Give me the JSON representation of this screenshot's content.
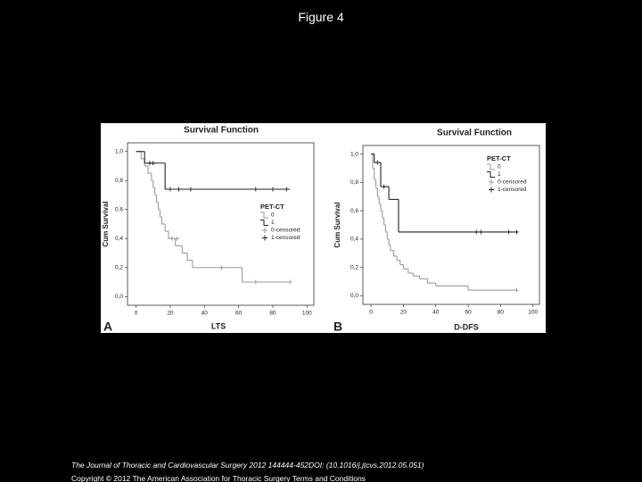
{
  "header": {
    "title": "Figure 4"
  },
  "chart_data": [
    {
      "type": "step",
      "panel": "A",
      "title": "Survival Function",
      "x_label": "LTS",
      "y_label": "Cum Survival",
      "legend_title": "PET-CT",
      "xlim": [
        -5,
        104
      ],
      "ylim": [
        -0.06,
        1.06
      ],
      "xticks": [
        0,
        20,
        40,
        60,
        80,
        100
      ],
      "yticks": [
        {
          "value": 0,
          "label": "0,0"
        },
        {
          "value": 0.2,
          "label": "0,2"
        },
        {
          "value": 0.4,
          "label": "0,4"
        },
        {
          "value": 0.6,
          "label": "0,6"
        },
        {
          "value": 0.8,
          "label": "0,8"
        },
        {
          "value": 1,
          "label": "1,0"
        }
      ],
      "series": [
        {
          "name": "0",
          "color": "#9a9a9a",
          "x": [
            0,
            3,
            5,
            7,
            9,
            10,
            11,
            12,
            13,
            14,
            15,
            17,
            19,
            23,
            27,
            30,
            33,
            62,
            90
          ],
          "values": [
            1,
            0.95,
            0.9,
            0.85,
            0.8,
            0.75,
            0.7,
            0.65,
            0.6,
            0.55,
            0.5,
            0.45,
            0.4,
            0.35,
            0.3,
            0.25,
            0.2,
            0.1,
            0.1
          ]
        },
        {
          "name": "1",
          "color": "#222222",
          "x": [
            0,
            5,
            17,
            90
          ],
          "values": [
            1,
            0.92,
            0.74,
            0.74
          ]
        },
        {
          "name": "0-censored",
          "color": "#9a9a9a",
          "marker": "+",
          "x": [
            21,
            24,
            50,
            70,
            90
          ],
          "values": [
            0.4,
            0.4,
            0.2,
            0.1,
            0.1
          ]
        },
        {
          "name": "1-censored",
          "color": "#222222",
          "marker": "+",
          "x": [
            8,
            10,
            20,
            25,
            32,
            70,
            80,
            88
          ],
          "values": [
            0.92,
            0.92,
            0.74,
            0.74,
            0.74,
            0.74,
            0.74,
            0.74
          ]
        }
      ]
    },
    {
      "type": "step",
      "panel": "B",
      "title": "Survival Function",
      "x_label": "D-DFS",
      "y_label": "Cum Survival",
      "legend_title": "PET-CT",
      "xlim": [
        -5,
        104
      ],
      "ylim": [
        -0.06,
        1.06
      ],
      "xticks": [
        0,
        20,
        40,
        60,
        80,
        100
      ],
      "yticks": [
        {
          "value": 0,
          "label": "0,0"
        },
        {
          "value": 0.2,
          "label": "0,2"
        },
        {
          "value": 0.4,
          "label": "0,4"
        },
        {
          "value": 0.6,
          "label": "0,6"
        },
        {
          "value": 0.8,
          "label": "0,8"
        },
        {
          "value": 1,
          "label": "1,0"
        }
      ],
      "series": [
        {
          "name": "0",
          "color": "#9a9a9a",
          "x": [
            0,
            1,
            2,
            3,
            4,
            5,
            6,
            7,
            8,
            9,
            10,
            11,
            12,
            14,
            16,
            18,
            20,
            23,
            26,
            30,
            35,
            40,
            50,
            60,
            90
          ],
          "values": [
            1,
            0.9,
            0.82,
            0.76,
            0.7,
            0.65,
            0.6,
            0.55,
            0.5,
            0.45,
            0.4,
            0.36,
            0.32,
            0.28,
            0.25,
            0.22,
            0.19,
            0.16,
            0.14,
            0.12,
            0.09,
            0.07,
            0.07,
            0.04,
            0.04
          ]
        },
        {
          "name": "1",
          "color": "#222222",
          "x": [
            0,
            2,
            6,
            11,
            17,
            90
          ],
          "values": [
            1,
            0.94,
            0.77,
            0.68,
            0.45,
            0.45
          ]
        },
        {
          "name": "0-censored",
          "color": "#9a9a9a",
          "marker": "+",
          "x": [
            90
          ],
          "values": [
            0.04
          ]
        },
        {
          "name": "1-censored",
          "color": "#222222",
          "marker": "+",
          "x": [
            4,
            8,
            65,
            68,
            85,
            90
          ],
          "values": [
            0.94,
            0.77,
            0.45,
            0.45,
            0.45,
            0.45
          ]
        }
      ]
    }
  ],
  "footer": {
    "citation": "The Journal of Thoracic and Cardiovascular Surgery 2012 144444-452DOI: (10.1016/j.jtcvs.2012.05.051)",
    "copyright": "Copyright © 2012 The American Association for Thoracic Surgery",
    "link": "Terms and Conditions"
  }
}
